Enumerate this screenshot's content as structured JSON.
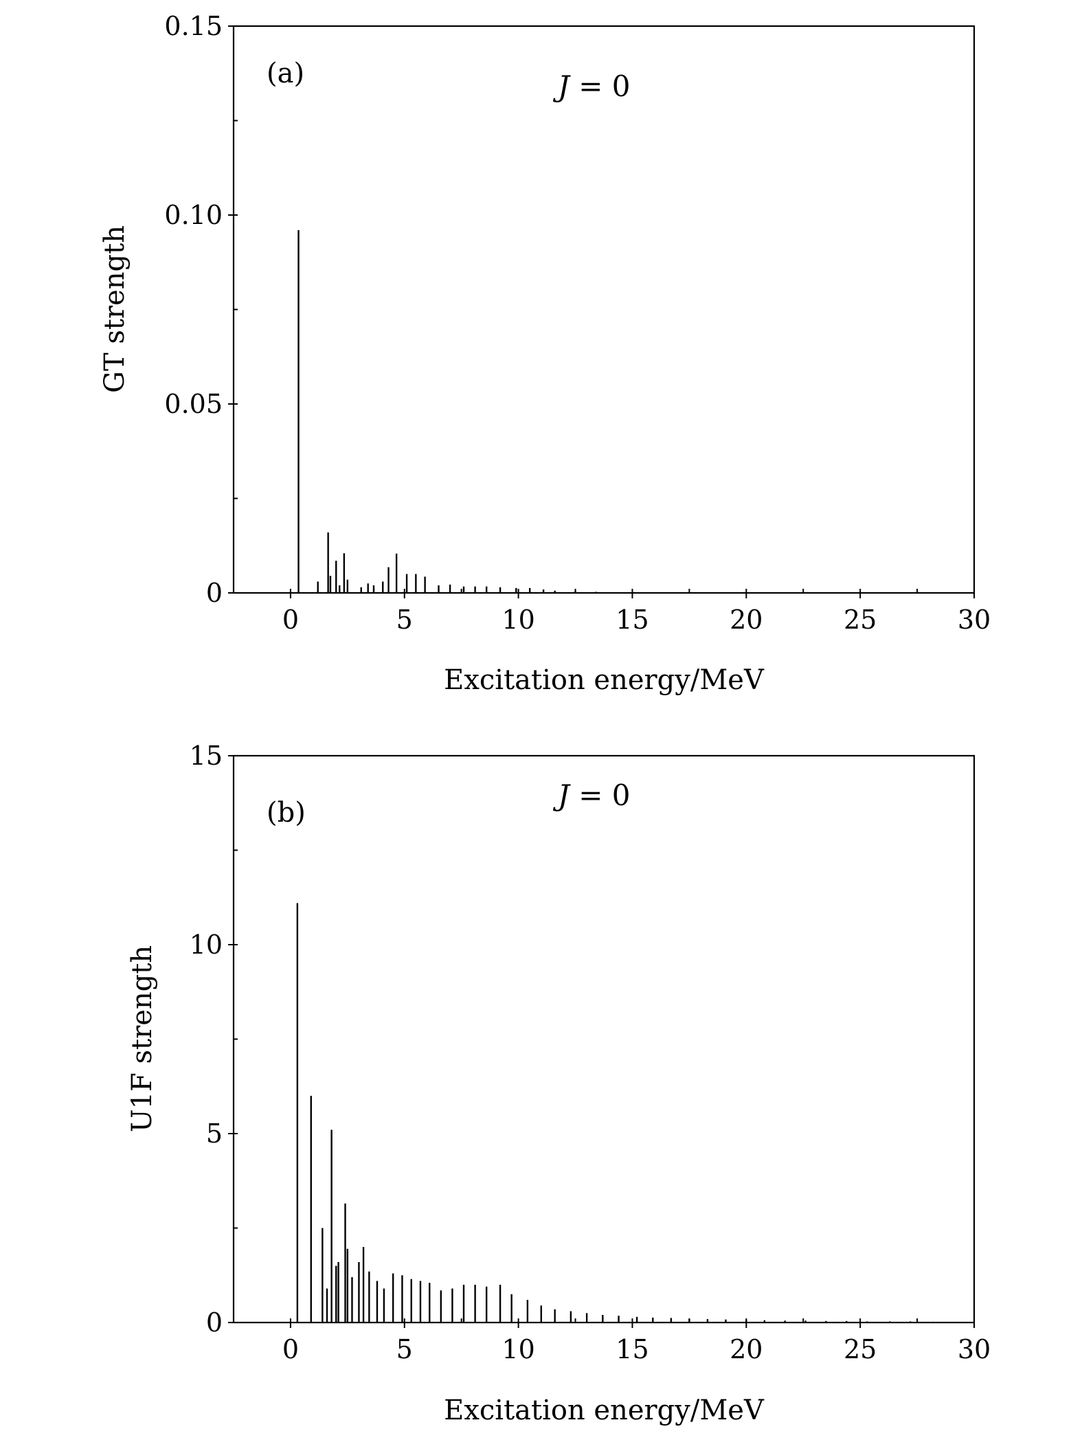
{
  "chart_data": [
    {
      "type": "bar",
      "panel_label": "(a)",
      "annotation": {
        "symbol": "J",
        "rest": " = 0"
      },
      "xlabel": "Excitation energy/MeV",
      "ylabel": "GT strength",
      "xlim": [
        -2.5,
        30
      ],
      "ylim": [
        0,
        0.15
      ],
      "x_ticks": [
        0,
        5,
        10,
        15,
        20,
        25,
        30
      ],
      "y_ticks": [
        0,
        0.05,
        0.1,
        0.15
      ],
      "x_tick_labels": [
        "0",
        "5",
        "10",
        "15",
        "20",
        "25",
        "30"
      ],
      "y_tick_labels": [
        "0",
        "0.05",
        "0.10",
        "0.15"
      ],
      "x_minor_step": 2.5,
      "y_minor_step": 0.025,
      "grid": false,
      "bar_color": "#000000",
      "x": [
        0.35,
        1.2,
        1.65,
        1.75,
        2.0,
        2.15,
        2.35,
        2.5,
        3.1,
        3.4,
        3.65,
        4.05,
        4.3,
        4.65,
        5.1,
        5.5,
        5.9,
        6.5,
        7.0,
        7.6,
        8.1,
        8.6,
        9.2,
        9.9,
        10.5,
        11.1,
        11.6,
        12.5,
        13.4
      ],
      "values": [
        0.096,
        0.003,
        0.016,
        0.0045,
        0.0085,
        0.002,
        0.0105,
        0.0035,
        0.0015,
        0.0025,
        0.002,
        0.003,
        0.0068,
        0.0104,
        0.005,
        0.005,
        0.0043,
        0.002,
        0.0022,
        0.0017,
        0.0017,
        0.0017,
        0.0015,
        0.0013,
        0.0013,
        0.0009,
        0.0006,
        0.0005,
        0.0003
      ]
    },
    {
      "type": "bar",
      "panel_label": "(b)",
      "annotation": {
        "symbol": "J",
        "rest": " = 0"
      },
      "xlabel": "Excitation energy/MeV",
      "ylabel": "U1F strength",
      "xlim": [
        -2.5,
        30
      ],
      "ylim": [
        0,
        15
      ],
      "x_ticks": [
        0,
        5,
        10,
        15,
        20,
        25,
        30
      ],
      "y_ticks": [
        0,
        5,
        10,
        15
      ],
      "x_tick_labels": [
        "0",
        "5",
        "10",
        "15",
        "20",
        "25",
        "30"
      ],
      "y_tick_labels": [
        "0",
        "5",
        "10",
        "15"
      ],
      "x_minor_step": 2.5,
      "y_minor_step": 2.5,
      "grid": false,
      "bar_color": "#000000",
      "x": [
        0.3,
        0.9,
        1.4,
        1.6,
        1.8,
        2.0,
        2.1,
        2.4,
        2.5,
        2.7,
        3.0,
        3.2,
        3.45,
        3.8,
        4.1,
        4.5,
        4.9,
        5.3,
        5.7,
        6.1,
        6.6,
        7.1,
        7.6,
        8.1,
        8.6,
        9.2,
        9.7,
        10.4,
        11.0,
        11.6,
        12.3,
        13.0,
        13.7,
        14.4,
        15.2,
        15.9,
        16.7,
        17.5,
        18.3,
        19.1,
        20.0,
        20.8,
        21.7,
        22.6,
        23.5,
        24.4,
        25.3,
        26.3,
        27.2,
        28.2
      ],
      "values": [
        11.1,
        6.0,
        2.5,
        0.9,
        5.1,
        1.5,
        1.6,
        3.15,
        1.95,
        1.2,
        1.6,
        2.0,
        1.35,
        1.1,
        0.9,
        1.3,
        1.25,
        1.15,
        1.1,
        1.05,
        0.85,
        0.9,
        1.0,
        1.0,
        0.95,
        1.0,
        0.75,
        0.6,
        0.45,
        0.35,
        0.3,
        0.25,
        0.2,
        0.18,
        0.15,
        0.13,
        0.12,
        0.1,
        0.09,
        0.08,
        0.07,
        0.06,
        0.05,
        0.05,
        0.04,
        0.04,
        0.03,
        0.03,
        0.03,
        0.02
      ]
    }
  ]
}
